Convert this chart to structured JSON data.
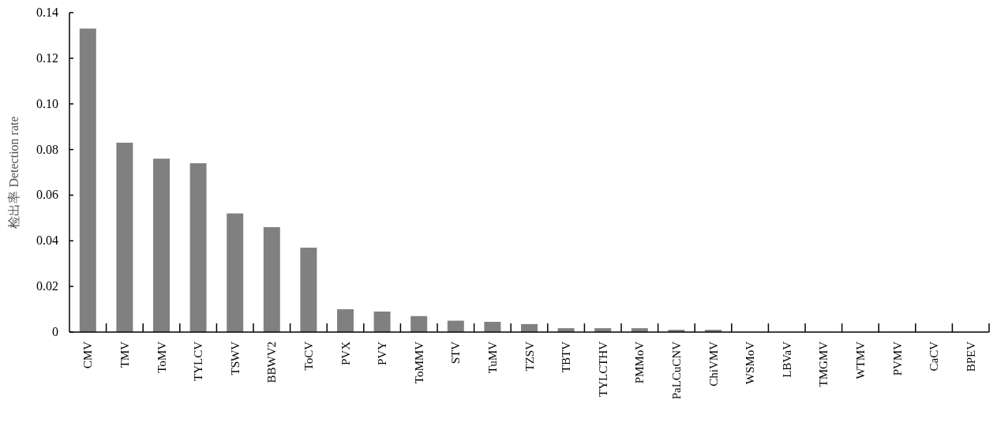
{
  "chart_data": {
    "type": "bar",
    "ylabel": "检出率 Detection rate",
    "categories": [
      "CMV",
      "TMV",
      "ToMV",
      "TYLCV",
      "TSWV",
      "BBWV2",
      "ToCV",
      "PVX",
      "PVY",
      "ToMMV",
      "STV",
      "TuMV",
      "TZSV",
      "TBTV",
      "TYLCTHV",
      "PMMoV",
      "PaLCuCNV",
      "ChiVMV",
      "WSMoV",
      "LBVaV",
      "TMGMV",
      "WTMV",
      "PVMV",
      "CaCV",
      "BPEV"
    ],
    "values": [
      0.133,
      0.083,
      0.076,
      0.074,
      0.052,
      0.046,
      0.037,
      0.01,
      0.009,
      0.007,
      0.005,
      0.0045,
      0.0035,
      0.0017,
      0.0017,
      0.0017,
      0.001,
      0.001,
      0,
      0,
      0,
      0,
      0,
      0,
      0
    ],
    "color": "#808080",
    "ylim": [
      0,
      0.14
    ],
    "yticks": [
      {
        "value": 0,
        "label": "0"
      },
      {
        "value": 0.02,
        "label": "0.02"
      },
      {
        "value": 0.04,
        "label": "0.04"
      },
      {
        "value": 0.06,
        "label": "0.06"
      },
      {
        "value": 0.08,
        "label": "0.08"
      },
      {
        "value": 0.1,
        "label": "0.10"
      },
      {
        "value": 0.12,
        "label": "0.12"
      },
      {
        "value": 0.14,
        "label": "0.14"
      }
    ],
    "grid": false
  }
}
